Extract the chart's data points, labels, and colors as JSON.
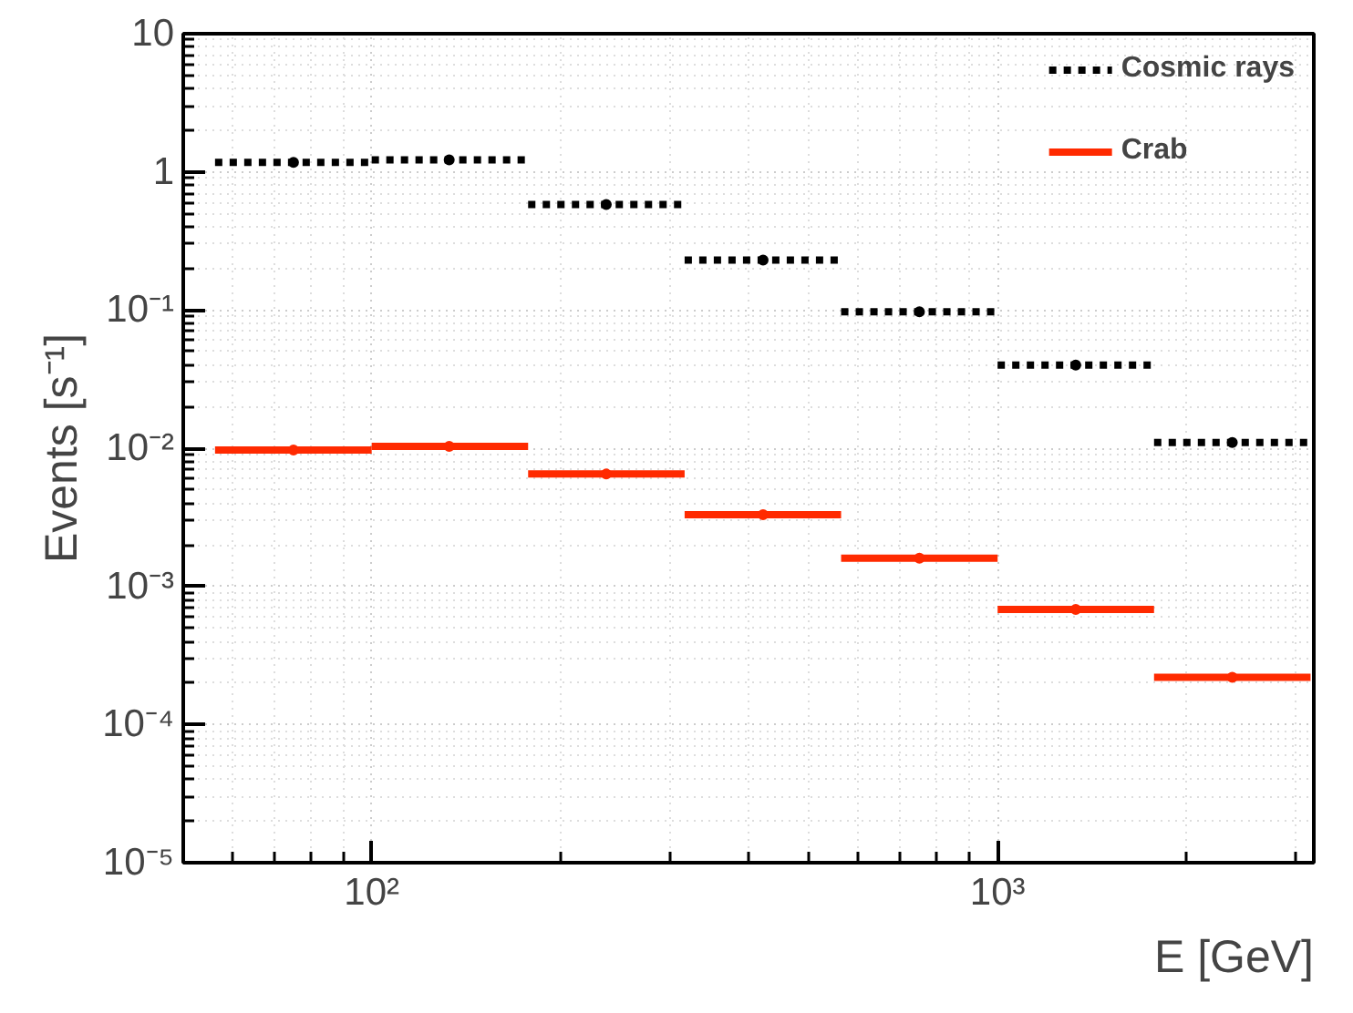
{
  "chart_data": {
    "type": "scatter",
    "xlabel": "E [GeV]",
    "ylabel": "Events [s⁻¹]",
    "x": [
      75,
      133,
      237,
      422,
      750,
      1333,
      2371
    ],
    "series": [
      {
        "name": "Cosmic rays",
        "color": "#000000",
        "line_style": "dashed",
        "values": [
          1.17,
          1.22,
          0.58,
          0.23,
          0.097,
          0.04,
          0.011
        ],
        "xerrors": [
          [
            56.2,
            100
          ],
          [
            100,
            177.8
          ],
          [
            177.8,
            316.2
          ],
          [
            316.2,
            562.3
          ],
          [
            562.3,
            1000
          ],
          [
            1000,
            1778
          ],
          [
            1778,
            3162
          ]
        ]
      },
      {
        "name": "Crab",
        "color": "#ff2a00",
        "line_style": "solid",
        "values": [
          0.0097,
          0.0103,
          0.0065,
          0.0033,
          0.0016,
          0.00068,
          0.00022
        ],
        "xerrors": [
          [
            56.2,
            100
          ],
          [
            100,
            177.8
          ],
          [
            177.8,
            316.2
          ],
          [
            316.2,
            562.3
          ],
          [
            562.3,
            1000
          ],
          [
            1000,
            1778
          ],
          [
            1778,
            3162
          ]
        ]
      }
    ],
    "log": "xy",
    "xlim": [
      50,
      3200
    ],
    "ylim": [
      1e-05,
      10
    ],
    "xticks": [
      {
        "value": 100,
        "label": "10²"
      },
      {
        "value": 1000,
        "label": "10³"
      }
    ],
    "yticks": [
      {
        "value": 1e-05,
        "label": "10⁻⁵"
      },
      {
        "value": 0.0001,
        "label": "10⁻⁴"
      },
      {
        "value": 0.001,
        "label": "10⁻³"
      },
      {
        "value": 0.01,
        "label": "10⁻²"
      },
      {
        "value": 0.1,
        "label": "10⁻¹"
      },
      1,
      10
    ],
    "grid": true,
    "legend": "top right",
    "marker": "circle"
  }
}
